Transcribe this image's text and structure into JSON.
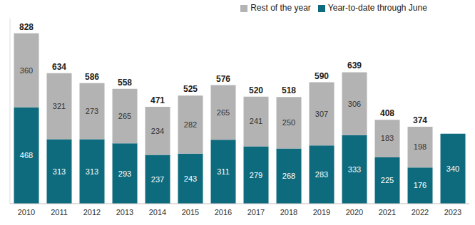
{
  "chart_data": {
    "type": "bar",
    "stacked": true,
    "data_labels": true,
    "grid": false,
    "legend": "top",
    "tick_labels": "x",
    "categories": [
      "2010",
      "2011",
      "2012",
      "2013",
      "2014",
      "2015",
      "2016",
      "2017",
      "2018",
      "2019",
      "2020",
      "2021",
      "2022",
      "2023"
    ],
    "series": [
      {
        "name": "Year-to-date through June",
        "color": "#0e6b7e",
        "values": [
          468,
          313,
          313,
          293,
          237,
          243,
          311,
          279,
          268,
          283,
          333,
          225,
          176,
          340
        ]
      },
      {
        "name": "Rest of the year",
        "color": "#b3b3b3",
        "values": [
          360,
          321,
          273,
          265,
          234,
          282,
          265,
          241,
          250,
          307,
          306,
          183,
          198,
          null
        ]
      }
    ],
    "totals": [
      828,
      634,
      586,
      558,
      471,
      525,
      576,
      520,
      518,
      590,
      639,
      408,
      374,
      null
    ],
    "ylim": [
      0,
      900
    ]
  }
}
